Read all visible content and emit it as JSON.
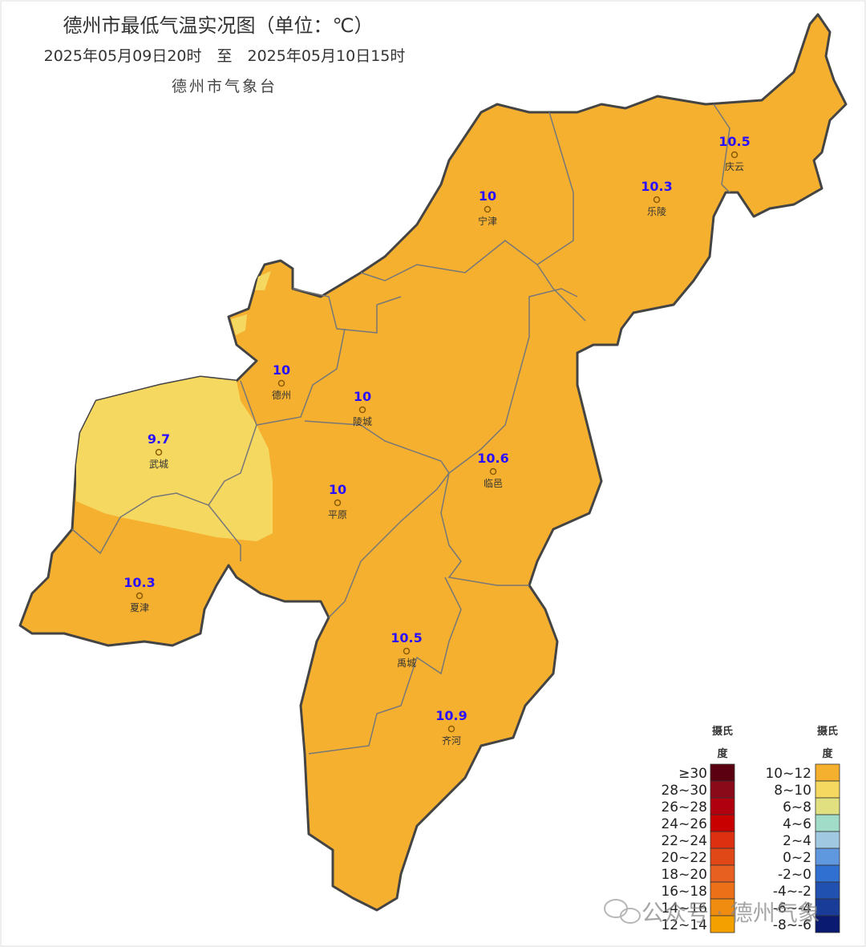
{
  "header": {
    "title": "德州市最低气温实况图（单位：℃）",
    "subtitle": "2025年05月09日20时　至　2025年05月10日15时",
    "issuer": "德州市气象台"
  },
  "stations": [
    {
      "name": "宁津",
      "value": 10
    },
    {
      "name": "乐陵",
      "value": 10.3
    },
    {
      "name": "庆云",
      "value": 10.5
    },
    {
      "name": "德州",
      "value": 10
    },
    {
      "name": "陵城",
      "value": 10
    },
    {
      "name": "武城",
      "value": 9.7
    },
    {
      "name": "平原",
      "value": 10
    },
    {
      "name": "临邑",
      "value": 10.6
    },
    {
      "name": "夏津",
      "value": 10.3
    },
    {
      "name": "禹城",
      "value": 10.5
    },
    {
      "name": "齐河",
      "value": 10.9
    }
  ],
  "legend": {
    "columns": [
      {
        "title_lines": [
          "摄氏",
          "度"
        ],
        "items": [
          {
            "label": "≥30",
            "color": "#5a0010"
          },
          {
            "label": "28~30",
            "color": "#8a0a1a"
          },
          {
            "label": "26~28",
            "color": "#b00010"
          },
          {
            "label": "24~26",
            "color": "#c80000"
          },
          {
            "label": "22~24",
            "color": "#dd3010"
          },
          {
            "label": "20~22",
            "color": "#e04818"
          },
          {
            "label": "18~20",
            "color": "#e86020"
          },
          {
            "label": "16~18",
            "color": "#ec7018"
          },
          {
            "label": "14~16",
            "color": "#f08c10"
          },
          {
            "label": "12~14",
            "color": "#f4a000"
          }
        ]
      },
      {
        "title_lines": [
          "摄氏",
          "度"
        ],
        "items": [
          {
            "label": "10~12",
            "color": "#f5b030"
          },
          {
            "label": "8~10",
            "color": "#f5d860"
          },
          {
            "label": "6~8",
            "color": "#e0e080"
          },
          {
            "label": "4~6",
            "color": "#a0dcc8"
          },
          {
            "label": "2~4",
            "color": "#a0c8e0"
          },
          {
            "label": "0~2",
            "color": "#6098e0"
          },
          {
            "label": "-2~0",
            "color": "#3070d0"
          },
          {
            "label": "-4~-2",
            "color": "#2050b0"
          },
          {
            "label": "-6~-4",
            "color": "#183c98"
          },
          {
            "label": "-8~-6",
            "color": "#0a1a70"
          }
        ]
      }
    ]
  },
  "watermark": "公众号 · 德州气象"
}
